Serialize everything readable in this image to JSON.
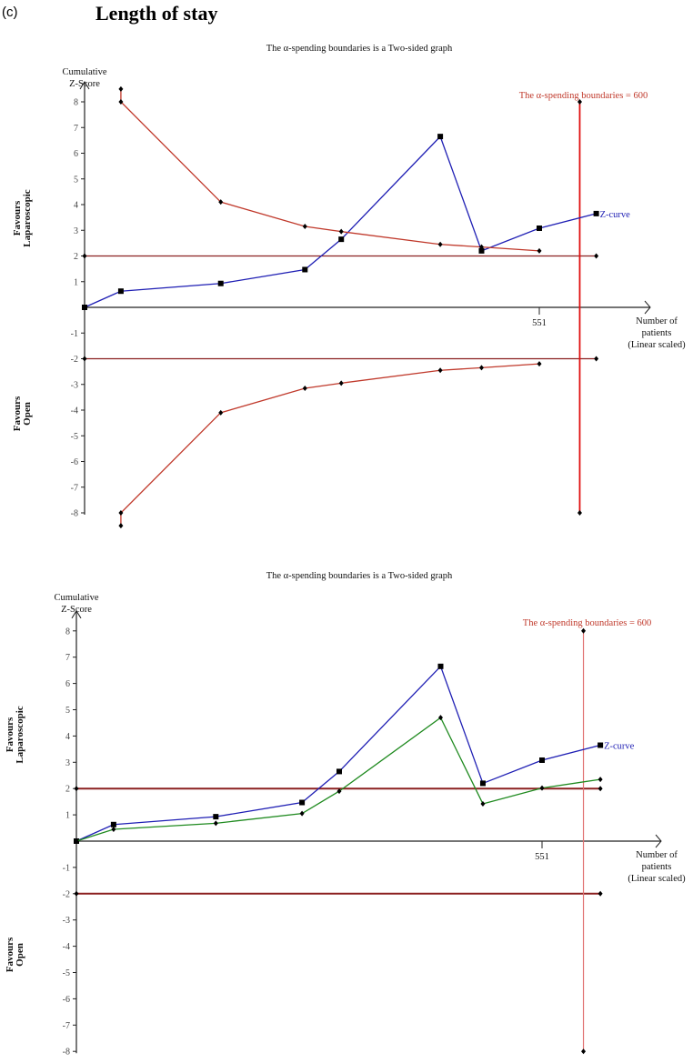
{
  "panel_label": "(c)",
  "heading": "Length of stay",
  "chart_data": [
    {
      "type": "line",
      "title": "The α-spending boundaries is a Two-sided graph",
      "ylabel": [
        "Cumulative",
        "Z-Score"
      ],
      "xlabel": [
        "Number of",
        "patients",
        "(Linear scaled)"
      ],
      "favours_top": [
        "Favours",
        "Laparoscopic"
      ],
      "favours_bottom": [
        "Favours",
        "Open"
      ],
      "ylim": [
        -8,
        8
      ],
      "y_ticks": [
        8,
        7,
        6,
        5,
        4,
        3,
        2,
        1,
        -1,
        -2,
        -3,
        -4,
        -5,
        -6,
        -7,
        -8
      ],
      "x_tick": {
        "value": 551,
        "label": "551"
      },
      "x_max": 620,
      "boundary_label": "The α-spending boundaries = 600",
      "required_information_size": 600,
      "conventional_boundary": 2,
      "zcurve_label": "Z-curve",
      "colors": {
        "zcurve": "#1f1fb4",
        "boundary": "#c0392b",
        "conventional": "#8b2020",
        "ris": "#e01010",
        "axis": "#222222"
      },
      "series": [
        {
          "name": "Z-curve",
          "x": [
            0,
            44,
            165,
            267,
            311,
            431,
            481,
            551,
            620
          ],
          "y": [
            0,
            0.63,
            0.93,
            1.47,
            2.65,
            6.65,
            2.2,
            3.08,
            3.65
          ]
        },
        {
          "name": "Upper α-spending boundary",
          "x": [
            44,
            44,
            165,
            267,
            311,
            431,
            481,
            551
          ],
          "y": [
            8.5,
            8,
            4.1,
            3.15,
            2.95,
            2.45,
            2.35,
            2.2
          ]
        },
        {
          "name": "Lower α-spending boundary",
          "x": [
            44,
            44,
            165,
            267,
            311,
            431,
            481,
            551
          ],
          "y": [
            -8.5,
            -8,
            -4.1,
            -3.15,
            -2.95,
            -2.45,
            -2.35,
            -2.2
          ]
        }
      ]
    },
    {
      "type": "line",
      "title": "The α-spending boundaries is a Two-sided graph",
      "ylabel": [
        "Cumulative",
        "Z-Score"
      ],
      "xlabel": [
        "Number of",
        "patients",
        "(Linear scaled)"
      ],
      "favours_top": [
        "Favours",
        "Laparoscopic"
      ],
      "favours_bottom": [
        "Favours",
        "Open"
      ],
      "ylim": [
        -8,
        8
      ],
      "y_ticks": [
        8,
        7,
        6,
        5,
        4,
        3,
        2,
        1,
        -1,
        -2,
        -3,
        -4,
        -5,
        -6,
        -7,
        -8
      ],
      "x_tick": {
        "value": 551,
        "label": "551"
      },
      "x_max": 620,
      "boundary_label": "The α-spending boundaries = 600",
      "required_information_size": 600,
      "conventional_boundary": 2,
      "zcurve_label": "Z-curve",
      "colors": {
        "zcurve": "#1f1fb4",
        "green": "#1f8a1f",
        "conventional": "#8b2020",
        "ris": "#e07070",
        "axis": "#222222"
      },
      "series": [
        {
          "name": "Z-curve",
          "x": [
            0,
            44,
            165,
            267,
            311,
            431,
            481,
            551,
            620
          ],
          "y": [
            0,
            0.63,
            0.93,
            1.47,
            2.65,
            6.65,
            2.2,
            3.08,
            3.65
          ]
        },
        {
          "name": "Adjusted Z-curve",
          "x": [
            0,
            44,
            165,
            267,
            311,
            431,
            481,
            551,
            620
          ],
          "y": [
            0,
            0.45,
            0.68,
            1.05,
            1.9,
            4.7,
            1.42,
            2.02,
            2.35
          ]
        }
      ]
    }
  ]
}
